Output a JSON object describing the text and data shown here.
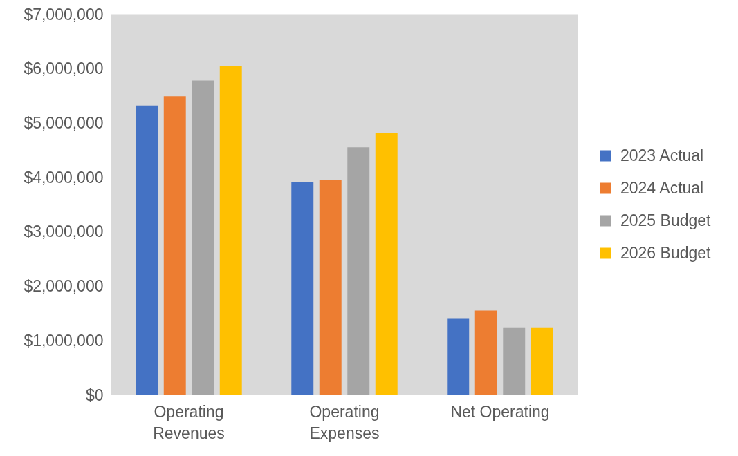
{
  "chart_data": {
    "type": "bar",
    "categories": [
      "Operating Revenues",
      "Operating Expenses",
      "Net Operating"
    ],
    "series": [
      {
        "name": "2023 Actual",
        "color": "#4472c4",
        "values": [
          5320000,
          3910000,
          1410000
        ]
      },
      {
        "name": "2024 Actual",
        "color": "#ed7d31",
        "values": [
          5490000,
          3950000,
          1550000
        ]
      },
      {
        "name": "2025 Budget",
        "color": "#a5a5a5",
        "values": [
          5780000,
          4550000,
          1230000
        ]
      },
      {
        "name": "2026 Budget",
        "color": "#ffc000",
        "values": [
          6050000,
          4820000,
          1230000
        ]
      }
    ],
    "ylim": [
      0,
      7000000
    ],
    "yticks": [
      {
        "value": 0,
        "label": "$0"
      },
      {
        "value": 1000000,
        "label": "$1,000,000"
      },
      {
        "value": 2000000,
        "label": "$2,000,000"
      },
      {
        "value": 3000000,
        "label": "$3,000,000"
      },
      {
        "value": 4000000,
        "label": "$4,000,000"
      },
      {
        "value": 5000000,
        "label": "$5,000,000"
      },
      {
        "value": 6000000,
        "label": "$6,000,000"
      },
      {
        "value": 7000000,
        "label": "$7,000,000"
      }
    ],
    "grid": false,
    "legend": "right"
  }
}
